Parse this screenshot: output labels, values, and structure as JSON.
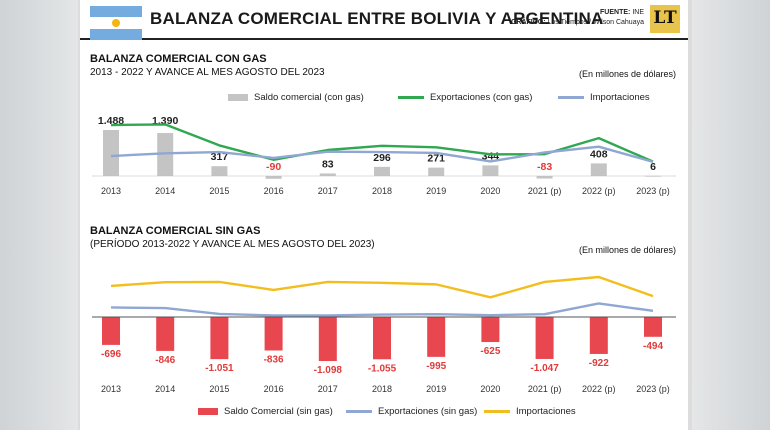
{
  "header": {
    "title": "BALANZA COMERCIAL ENTRE BOLIVIA Y ARGENTINA",
    "source_label": "FUENTE:",
    "source_value": "INE",
    "graphic_label": "GRÁFICO:",
    "graphic_value": "Los Tiempos / Wilson Cahuaya",
    "logo_text": "LT"
  },
  "colors": {
    "flag_blue": "#74acdf",
    "bar_gray": "#c4c4c4",
    "export_green": "#2fa84f",
    "import_blue": "#8fa7d2",
    "deficit_red": "#e8474f",
    "import_yellow": "#f2be1e",
    "negative_text": "#e03a3a"
  },
  "chart_data": [
    {
      "type": "bar",
      "title": "BALANZA COMERCIAL CON GAS",
      "subtitle": "2013 - 2022 Y AVANCE AL MES AGOSTO DEL 2023",
      "units": "(En millones de dólares)",
      "categories": [
        "2013",
        "2014",
        "2015",
        "2016",
        "2017",
        "2018",
        "2019",
        "2020",
        "2021 (p)",
        "2022 (p)",
        "2023 (p)"
      ],
      "series": [
        {
          "name": "Saldo comercial (con gas)",
          "kind": "bar",
          "values": [
            1488,
            1390,
            317,
            -90,
            83,
            296,
            271,
            344,
            -83,
            408,
            6
          ],
          "labels": [
            "1.488",
            "1.390",
            "317",
            "-90",
            "83",
            "296",
            "271",
            "344",
            "-83",
            "408",
            "6"
          ]
        },
        {
          "name": "Exportaciones (con gas)",
          "kind": "line",
          "values": [
            2450,
            2480,
            1470,
            780,
            1250,
            1450,
            1380,
            1040,
            1050,
            1820,
            690
          ]
        },
        {
          "name": "Importaciones",
          "kind": "line",
          "values": [
            960,
            1090,
            1150,
            870,
            1170,
            1150,
            1110,
            700,
            1130,
            1410,
            680
          ]
        }
      ],
      "legend_position": "top",
      "grid": false
    },
    {
      "type": "bar",
      "title": "BALANZA COMERCIAL SIN GAS",
      "subtitle": "(PERÍODO 2013-2022 Y AVANCE AL MES AGOSTO DEL 2023)",
      "units": "(En millones de dólares)",
      "categories": [
        "2013",
        "2014",
        "2015",
        "2016",
        "2017",
        "2018",
        "2019",
        "2020",
        "2021 (p)",
        "2022 (p)",
        "2023 (p)"
      ],
      "series": [
        {
          "name": "Saldo Comercial (sin gas)",
          "kind": "bar",
          "values": [
            -696,
            -846,
            -1051,
            -836,
            -1098,
            -1055,
            -995,
            -625,
            -1047,
            -922,
            -494
          ],
          "labels": [
            "-696",
            "-846",
            "-1.051",
            "-836",
            "-1.098",
            "-1.055",
            "-995",
            "-625",
            "-1.047",
            "-922",
            "-494"
          ]
        },
        {
          "name": "Exportaciones (sin gas)",
          "kind": "line",
          "values": [
            310,
            290,
            100,
            50,
            50,
            80,
            90,
            60,
            90,
            440,
            200
          ]
        },
        {
          "name": "Importaciones",
          "kind": "line",
          "values": [
            1010,
            1130,
            1140,
            880,
            1140,
            1110,
            1060,
            640,
            1140,
            1300,
            680
          ]
        }
      ],
      "legend_position": "bottom",
      "grid": false
    }
  ]
}
